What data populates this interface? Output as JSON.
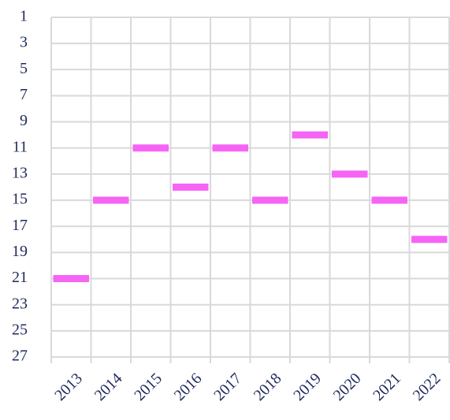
{
  "chart_data": {
    "type": "scatter",
    "marker": "dash",
    "categories": [
      "2013",
      "2014",
      "2015",
      "2016",
      "2017",
      "2018",
      "2019",
      "2020",
      "2021",
      "2022"
    ],
    "values": [
      21,
      15,
      11,
      14,
      11,
      15,
      10,
      13,
      15,
      18
    ],
    "color": "#f564f5",
    "ylim": [
      1,
      27
    ],
    "y_inverted": true,
    "yticks": [
      1,
      3,
      5,
      7,
      9,
      11,
      13,
      15,
      17,
      19,
      21,
      23,
      25,
      27
    ],
    "grid": true
  }
}
